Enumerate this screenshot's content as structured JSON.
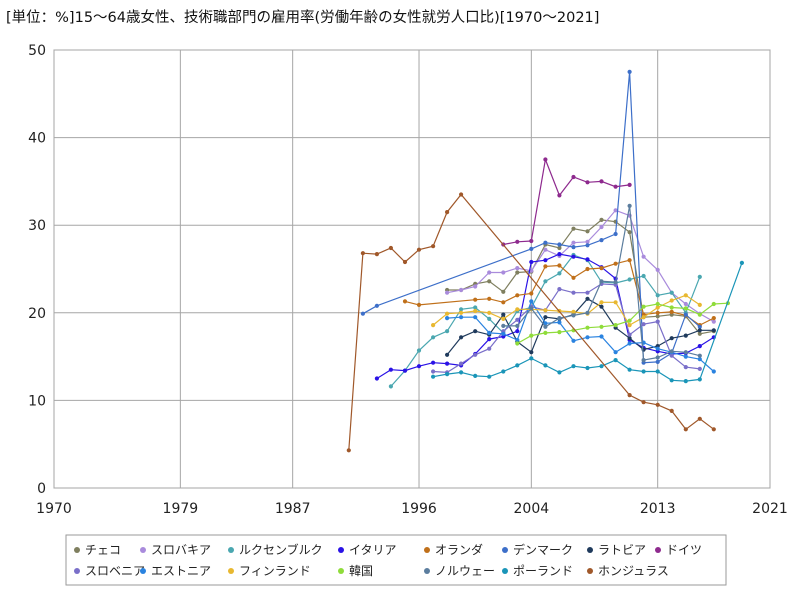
{
  "chart_data": {
    "type": "line",
    "title": "[単位：%]15～64歳女性、技術職部門の雇用率(労働年齢の女性就労人口比)[1970～2021]",
    "xlim": [
      1970,
      2021
    ],
    "ylim": [
      0,
      50
    ],
    "x_ticks": [
      1970,
      1979,
      1987,
      1996,
      2004,
      2013,
      2021
    ],
    "y_ticks": [
      0,
      10,
      20,
      30,
      40,
      50
    ],
    "grid": true,
    "legend_position": "bottom",
    "series": [
      {
        "name": "チェコ",
        "color": "#7f7f5f",
        "points": [
          [
            1998,
            22.6
          ],
          [
            1999,
            22.6
          ],
          [
            2000,
            23.3
          ],
          [
            2001,
            23.6
          ],
          [
            2002,
            22.4
          ],
          [
            2003,
            24.6
          ],
          [
            2004,
            24.7
          ],
          [
            2005,
            27.8
          ],
          [
            2006,
            27.4
          ],
          [
            2007,
            29.6
          ],
          [
            2008,
            29.3
          ],
          [
            2009,
            30.6
          ],
          [
            2010,
            30.4
          ],
          [
            2011,
            29.2
          ],
          [
            2012,
            19.5
          ],
          [
            2013,
            19.6
          ],
          [
            2014,
            19.8
          ],
          [
            2015,
            19.6
          ],
          [
            2016,
            17.6
          ],
          [
            2017,
            17.9
          ]
        ]
      },
      {
        "name": "スロバキア",
        "color": "#a98bdc",
        "points": [
          [
            1998,
            22.3
          ],
          [
            1999,
            22.6
          ],
          [
            2000,
            23.0
          ],
          [
            2001,
            24.6
          ],
          [
            2002,
            24.6
          ],
          [
            2003,
            25.1
          ],
          [
            2004,
            24.8
          ],
          [
            2005,
            27.2
          ],
          [
            2006,
            26.5
          ],
          [
            2007,
            28.0
          ],
          [
            2008,
            28.1
          ],
          [
            2009,
            29.8
          ],
          [
            2010,
            31.7
          ],
          [
            2011,
            31.1
          ],
          [
            2012,
            26.4
          ],
          [
            2013,
            24.9
          ],
          [
            2014,
            22.3
          ],
          [
            2015,
            21.0
          ],
          [
            2016,
            19.9
          ],
          [
            2017,
            19.0
          ]
        ]
      },
      {
        "name": "ルクセンブルク",
        "color": "#4aa7b0",
        "points": [
          [
            1994,
            11.6
          ],
          [
            1995,
            13.4
          ],
          [
            1996,
            15.7
          ],
          [
            1997,
            17.2
          ],
          [
            1998,
            17.9
          ],
          [
            1999,
            20.4
          ],
          [
            2000,
            20.6
          ],
          [
            2001,
            19.3
          ],
          [
            2002,
            17.7
          ],
          [
            2003,
            20.2
          ],
          [
            2004,
            20.6
          ],
          [
            2005,
            23.6
          ],
          [
            2006,
            24.5
          ],
          [
            2007,
            26.6
          ],
          [
            2008,
            26.0
          ],
          [
            2009,
            23.5
          ],
          [
            2010,
            23.4
          ],
          [
            2011,
            23.8
          ],
          [
            2012,
            24.2
          ],
          [
            2013,
            22.0
          ],
          [
            2014,
            22.3
          ],
          [
            2015,
            20.0
          ],
          [
            2016,
            24.1
          ]
        ]
      },
      {
        "name": "イタリア",
        "color": "#2a12e6",
        "points": [
          [
            1993,
            12.5
          ],
          [
            1994,
            13.5
          ],
          [
            1995,
            13.4
          ],
          [
            1996,
            13.9
          ],
          [
            1997,
            14.3
          ],
          [
            1998,
            14.2
          ],
          [
            1999,
            14.0
          ],
          [
            2000,
            15.3
          ],
          [
            2001,
            17.0
          ],
          [
            2002,
            17.3
          ],
          [
            2003,
            17.9
          ],
          [
            2004,
            25.8
          ],
          [
            2005,
            26.0
          ],
          [
            2006,
            26.7
          ],
          [
            2007,
            26.4
          ],
          [
            2008,
            26.1
          ],
          [
            2009,
            25.2
          ],
          [
            2010,
            23.9
          ],
          [
            2011,
            16.9
          ],
          [
            2012,
            16.0
          ],
          [
            2013,
            15.6
          ],
          [
            2014,
            15.3
          ],
          [
            2015,
            15.4
          ],
          [
            2016,
            16.2
          ],
          [
            2017,
            17.2
          ]
        ]
      },
      {
        "name": "オランダ",
        "color": "#c0701a",
        "points": [
          [
            1995,
            21.3
          ],
          [
            1996,
            20.9
          ],
          [
            2000,
            21.5
          ],
          [
            2001,
            21.6
          ],
          [
            2002,
            21.2
          ],
          [
            2003,
            22.0
          ],
          [
            2004,
            22.2
          ],
          [
            2005,
            25.3
          ],
          [
            2006,
            25.4
          ],
          [
            2007,
            24.0
          ],
          [
            2008,
            25.0
          ],
          [
            2009,
            25.1
          ],
          [
            2010,
            25.6
          ],
          [
            2011,
            26.0
          ],
          [
            2012,
            19.8
          ],
          [
            2013,
            20.0
          ],
          [
            2014,
            20.1
          ],
          [
            2015,
            19.7
          ],
          [
            2016,
            18.6
          ],
          [
            2017,
            19.4
          ]
        ]
      },
      {
        "name": "デンマーク",
        "color": "#3d6fc9",
        "points": [
          [
            1992,
            19.9
          ],
          [
            1993,
            20.8
          ],
          [
            2004,
            27.3
          ],
          [
            2005,
            28.0
          ],
          [
            2006,
            27.8
          ],
          [
            2007,
            27.5
          ],
          [
            2008,
            27.7
          ],
          [
            2009,
            28.3
          ],
          [
            2010,
            29.0
          ],
          [
            2011,
            47.5
          ],
          [
            2012,
            14.3
          ],
          [
            2013,
            14.4
          ],
          [
            2014,
            15.4
          ],
          [
            2015,
            19.8
          ],
          [
            2016,
            18.4
          ]
        ]
      },
      {
        "name": "ラトビア",
        "color": "#1f3a5c",
        "points": [
          [
            1998,
            15.2
          ],
          [
            1999,
            17.2
          ],
          [
            2000,
            17.9
          ],
          [
            2001,
            17.5
          ],
          [
            2002,
            19.8
          ],
          [
            2003,
            16.7
          ],
          [
            2004,
            15.5
          ],
          [
            2005,
            19.5
          ],
          [
            2006,
            19.3
          ],
          [
            2007,
            19.8
          ],
          [
            2008,
            21.6
          ],
          [
            2009,
            20.7
          ],
          [
            2010,
            18.3
          ],
          [
            2011,
            17.1
          ],
          [
            2012,
            15.8
          ],
          [
            2013,
            16.2
          ],
          [
            2014,
            17.1
          ],
          [
            2015,
            17.4
          ],
          [
            2016,
            18.0
          ],
          [
            2017,
            18.0
          ]
        ]
      },
      {
        "name": "ドイツ",
        "color": "#8e2a8e",
        "points": [
          [
            2002,
            27.8
          ],
          [
            2003,
            28.1
          ],
          [
            2004,
            28.2
          ],
          [
            2005,
            37.5
          ],
          [
            2006,
            33.4
          ],
          [
            2007,
            35.5
          ],
          [
            2008,
            34.9
          ],
          [
            2009,
            35.0
          ],
          [
            2010,
            34.4
          ],
          [
            2011,
            34.6
          ]
        ]
      },
      {
        "name": "スロベニア",
        "color": "#7a6fc9",
        "points": [
          [
            1997,
            13.3
          ],
          [
            1998,
            13.2
          ],
          [
            1999,
            14.2
          ],
          [
            2000,
            15.2
          ],
          [
            2001,
            15.9
          ],
          [
            2002,
            17.9
          ],
          [
            2003,
            19.2
          ],
          [
            2004,
            20.7
          ],
          [
            2005,
            20.3
          ],
          [
            2006,
            22.7
          ],
          [
            2007,
            22.3
          ],
          [
            2008,
            22.3
          ],
          [
            2009,
            23.3
          ],
          [
            2010,
            23.2
          ],
          [
            2011,
            17.5
          ],
          [
            2012,
            18.7
          ],
          [
            2013,
            19.0
          ],
          [
            2014,
            15.1
          ],
          [
            2015,
            13.8
          ],
          [
            2016,
            13.6
          ]
        ]
      },
      {
        "name": "エストニア",
        "color": "#2a83e0",
        "points": [
          [
            1998,
            19.4
          ],
          [
            1999,
            19.5
          ],
          [
            2000,
            19.5
          ],
          [
            2001,
            17.7
          ],
          [
            2002,
            17.6
          ],
          [
            2003,
            16.9
          ],
          [
            2004,
            21.3
          ],
          [
            2005,
            18.8
          ],
          [
            2006,
            18.9
          ],
          [
            2007,
            16.8
          ],
          [
            2008,
            17.2
          ],
          [
            2009,
            17.3
          ],
          [
            2010,
            15.5
          ],
          [
            2011,
            16.5
          ],
          [
            2012,
            16.6
          ],
          [
            2013,
            15.9
          ],
          [
            2014,
            15.5
          ],
          [
            2015,
            15.0
          ],
          [
            2016,
            14.7
          ],
          [
            2017,
            13.3
          ]
        ]
      },
      {
        "name": "フィンランド",
        "color": "#e8b830",
        "points": [
          [
            1997,
            18.6
          ],
          [
            1998,
            19.9
          ],
          [
            1999,
            20.0
          ],
          [
            2000,
            20.2
          ],
          [
            2001,
            20.0
          ],
          [
            2002,
            19.3
          ],
          [
            2003,
            20.4
          ],
          [
            2004,
            20.4
          ],
          [
            2005,
            20.3
          ],
          [
            2006,
            20.2
          ],
          [
            2007,
            20.1
          ],
          [
            2008,
            19.9
          ],
          [
            2009,
            21.2
          ],
          [
            2010,
            21.2
          ],
          [
            2011,
            18.6
          ],
          [
            2012,
            19.5
          ],
          [
            2013,
            20.6
          ],
          [
            2014,
            21.4
          ],
          [
            2015,
            22.0
          ],
          [
            2016,
            20.9
          ]
        ]
      },
      {
        "name": "韓国",
        "color": "#8fdc3a",
        "points": [
          [
            2003,
            16.5
          ],
          [
            2004,
            17.4
          ],
          [
            2005,
            17.7
          ],
          [
            2006,
            17.8
          ],
          [
            2007,
            18.0
          ],
          [
            2008,
            18.3
          ],
          [
            2009,
            18.4
          ],
          [
            2010,
            18.6
          ],
          [
            2011,
            19.1
          ],
          [
            2012,
            20.7
          ],
          [
            2013,
            21.0
          ],
          [
            2014,
            20.6
          ],
          [
            2015,
            20.5
          ],
          [
            2016,
            19.8
          ],
          [
            2017,
            21.0
          ],
          [
            2018,
            21.1
          ]
        ]
      },
      {
        "name": "ノルウェー",
        "color": "#5b7d9e",
        "points": [
          [
            2002,
            18.5
          ],
          [
            2003,
            18.5
          ],
          [
            2004,
            20.5
          ],
          [
            2005,
            18.4
          ],
          [
            2006,
            19.4
          ],
          [
            2007,
            19.7
          ],
          [
            2008,
            20.0
          ],
          [
            2009,
            23.6
          ],
          [
            2010,
            23.5
          ],
          [
            2011,
            32.2
          ],
          [
            2012,
            14.6
          ],
          [
            2013,
            14.9
          ],
          [
            2014,
            15.6
          ],
          [
            2015,
            15.5
          ],
          [
            2016,
            15.1
          ]
        ]
      },
      {
        "name": "ポーランド",
        "color": "#1a95b8",
        "points": [
          [
            1997,
            12.7
          ],
          [
            1998,
            13.0
          ],
          [
            1999,
            13.2
          ],
          [
            2000,
            12.8
          ],
          [
            2001,
            12.7
          ],
          [
            2002,
            13.3
          ],
          [
            2003,
            14.0
          ],
          [
            2004,
            14.8
          ],
          [
            2005,
            14.0
          ],
          [
            2006,
            13.2
          ],
          [
            2007,
            13.9
          ],
          [
            2008,
            13.7
          ],
          [
            2009,
            13.9
          ],
          [
            2010,
            14.6
          ],
          [
            2011,
            13.5
          ],
          [
            2012,
            13.3
          ],
          [
            2013,
            13.3
          ],
          [
            2014,
            12.3
          ],
          [
            2015,
            12.2
          ],
          [
            2016,
            12.4
          ],
          [
            2019,
            25.7
          ]
        ]
      },
      {
        "name": "ホンジュラス",
        "color": "#a0582a",
        "points": [
          [
            1991,
            4.3
          ],
          [
            1992,
            26.8
          ],
          [
            1993,
            26.7
          ],
          [
            1994,
            27.4
          ],
          [
            1995,
            25.8
          ],
          [
            1996,
            27.2
          ],
          [
            1997,
            27.6
          ],
          [
            1998,
            31.5
          ],
          [
            1999,
            33.5
          ],
          [
            2011,
            10.6
          ],
          [
            2012,
            9.8
          ],
          [
            2013,
            9.5
          ],
          [
            2014,
            8.8
          ],
          [
            2015,
            6.7
          ],
          [
            2016,
            7.9
          ],
          [
            2017,
            6.7
          ]
        ]
      }
    ]
  }
}
